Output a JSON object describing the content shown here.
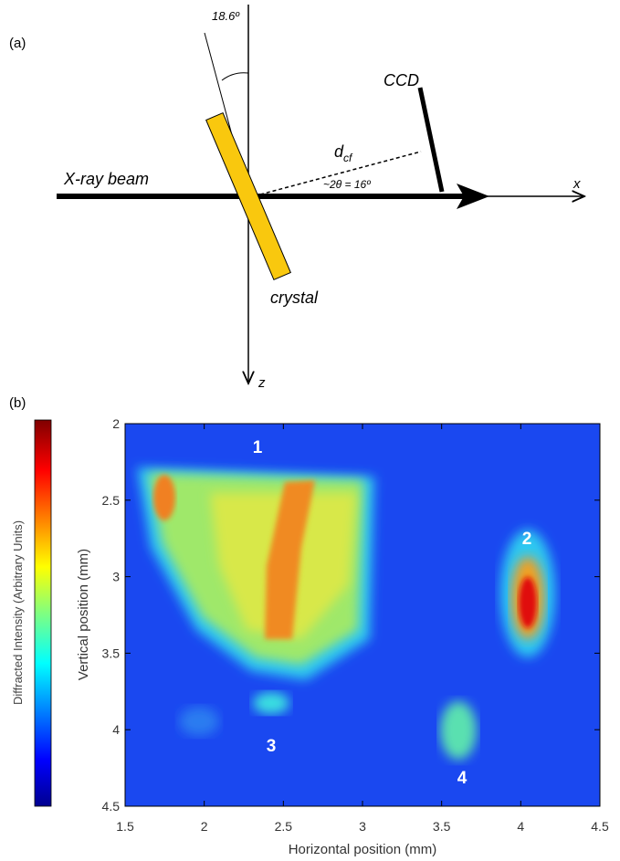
{
  "panel_a": {
    "label": "(a)",
    "angle_label": "18.6º",
    "ccd_label": "CCD",
    "distance_label": "d",
    "distance_subscript": "cf",
    "scatter_label": "~2θ = 16º",
    "beam_label": "X-ray beam",
    "crystal_label": "crystal",
    "x_axis_label": "x",
    "z_axis_label": "z"
  },
  "panel_b": {
    "label": "(b)",
    "colorbar_label": "Diffracted Intensity (Arbitrary Units)",
    "xlabel": "Horizontal position (mm)",
    "ylabel": "Vertical position (mm)",
    "xlim": [
      1.5,
      4.5
    ],
    "xticks": [
      1.5,
      2,
      2.5,
      3,
      3.5,
      4,
      4.5
    ],
    "ylim": [
      2,
      4.5
    ],
    "yticks": [
      2,
      2.5,
      3,
      3.5,
      4,
      4.5
    ],
    "region_labels": [
      "1",
      "2",
      "3",
      "4"
    ]
  }
}
